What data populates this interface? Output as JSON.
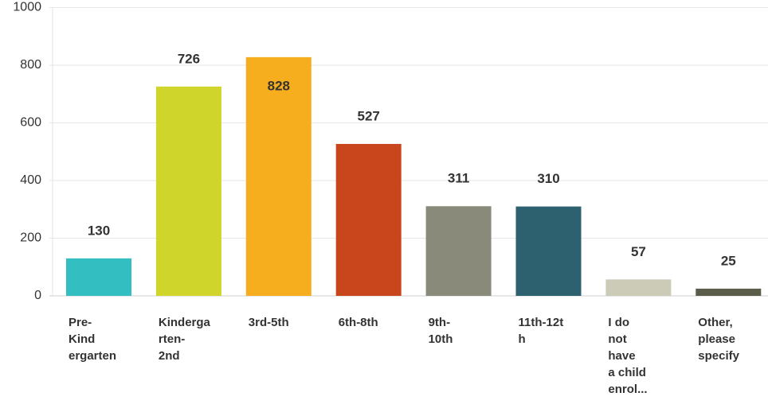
{
  "chart_data": {
    "type": "bar",
    "categories": [
      "Pre-\nKind\nergarten",
      "Kinderga\nrten-\n2nd",
      "3rd-5th",
      "6th-8th",
      "9th-\n10th",
      "11th-12t\nh",
      "I do\nnot\nhave\na child\nenrol...",
      "Other,\nplease\nspecify"
    ],
    "values": [
      130,
      726,
      828,
      527,
      311,
      310,
      57,
      25
    ],
    "colors": [
      "#33bfc1",
      "#d0d52b",
      "#f7ae1e",
      "#c9461d",
      "#8a8a7a",
      "#2e6170",
      "#cccbb8",
      "#5c5c4a"
    ],
    "ylim": [
      0,
      1000
    ],
    "yticks": [
      0,
      200,
      400,
      600,
      800,
      1000
    ],
    "grid": true
  }
}
